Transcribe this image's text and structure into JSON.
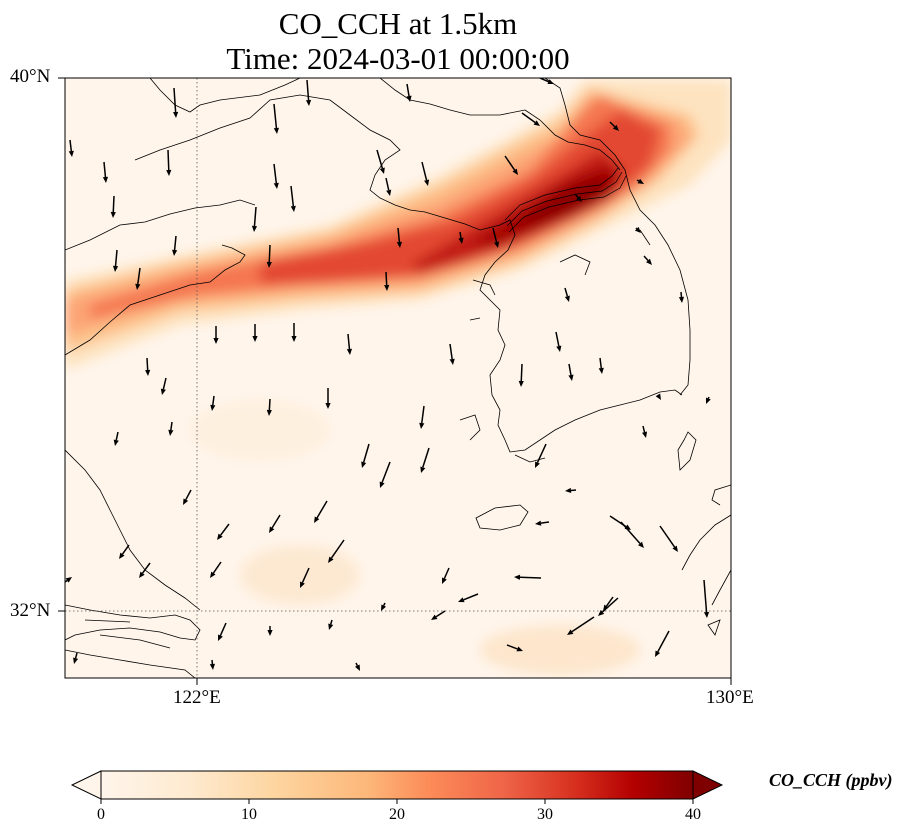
{
  "title": {
    "line1": "CO_CCH at 1.5km",
    "line2": "Time: 2024-03-01 00:00:00"
  },
  "axes": {
    "lat_ticks": [
      "40°N",
      "32°N"
    ],
    "lon_ticks": [
      "122°E",
      "130°E"
    ],
    "lon_range": [
      120,
      130
    ],
    "lat_range": [
      31,
      40
    ],
    "gridlines": {
      "lon": 122,
      "lat": 32,
      "style": "dotted"
    }
  },
  "colorbar": {
    "label": "CO_CCH (ppbv)",
    "ticks": [
      "0",
      "10",
      "20",
      "30",
      "40"
    ],
    "range": [
      0,
      40
    ],
    "colormap": [
      "#fff5eb",
      "#fdd49e",
      "#fdbb84",
      "#fc8d59",
      "#ef6548",
      "#d7301f",
      "#b30000",
      "#7f0000"
    ],
    "extend": "both"
  },
  "plume": {
    "description": "",
    "max_value": 40
  },
  "colors": {
    "coastline": "#000000",
    "arrow": "#000000",
    "background": "#fff5eb"
  }
}
